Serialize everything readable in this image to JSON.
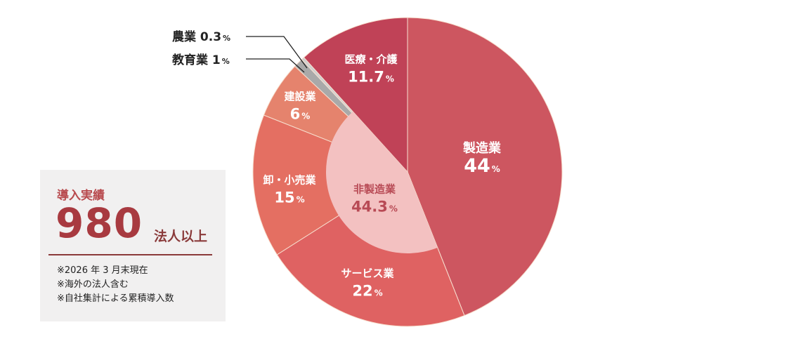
{
  "chart_data": {
    "type": "pie",
    "slices": [
      {
        "name": "製造業",
        "value": 44,
        "color": "#cd5660"
      },
      {
        "name": "サービス業",
        "value": 22,
        "color": "#df6262"
      },
      {
        "name": "卸・小売業",
        "value": 15,
        "color": "#e46f62"
      },
      {
        "name": "建設業",
        "value": 6,
        "color": "#e5836d"
      },
      {
        "name": "教育業",
        "value": 1,
        "color": "#a9a9a9"
      },
      {
        "name": "農業",
        "value": 0.3,
        "color": "#cfcfcf"
      },
      {
        "name": "医療・介護",
        "value": 11.7,
        "color": "#c04257"
      }
    ],
    "inner": {
      "name": "非製造業",
      "value": 44.3,
      "color": "#f3c1c1"
    },
    "unit": "%"
  },
  "summary": {
    "title": "導入実績",
    "number": "980",
    "unit": "法人以上",
    "notes": [
      "※2026 年 3 月末現在",
      "※海外の法人含む",
      "※自社集計による累積導入数"
    ]
  }
}
